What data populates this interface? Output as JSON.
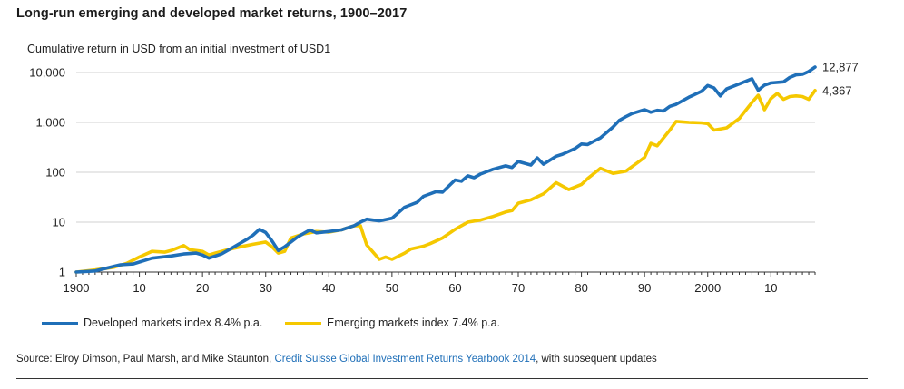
{
  "title": "Long-run emerging and developed market returns, 1900–2017",
  "subtitle": "Cumulative return in USD from an initial investment  of USD1",
  "legend": {
    "developed": "Developed markets index 8.4% p.a.",
    "emerging": "Emerging markets index 7.4% p.a."
  },
  "source": {
    "prefix": "Source: Elroy Dimson, Paul Marsh, and Mike Staunton, ",
    "link": "Credit Suisse Global Investment Returns Yearbook 2014",
    "suffix": ", with subsequent updates"
  },
  "colors": {
    "developed": "#1f6fb8",
    "emerging": "#f5c800",
    "axis": "#333333"
  },
  "chart_data": {
    "type": "line",
    "yscale": "log",
    "ylim": [
      1,
      12877
    ],
    "xlim": [
      1900,
      2017
    ],
    "yticks": [
      1,
      10,
      100,
      1000,
      10000
    ],
    "ytick_labels": [
      "1",
      "10",
      "100",
      "1,000",
      "10,000"
    ],
    "xticks": [
      1900,
      1910,
      1920,
      1930,
      1940,
      1950,
      1960,
      1970,
      1980,
      1990,
      2000,
      2010
    ],
    "xtick_labels": [
      "1900",
      "10",
      "20",
      "30",
      "40",
      "50",
      "60",
      "70",
      "80",
      "90",
      "2000",
      "10"
    ],
    "grid": "horizontal",
    "legend_position": "bottom-left",
    "series": [
      {
        "name": "Developed markets index 8.4% p.a.",
        "color": "#1f6fb8",
        "end_label": "12,877",
        "x": [
          1900,
          1903,
          1907,
          1909,
          1912,
          1915,
          1917,
          1919,
          1920,
          1921,
          1923,
          1925,
          1927,
          1928,
          1929,
          1930,
          1931,
          1932,
          1933,
          1935,
          1937,
          1938,
          1940,
          1942,
          1944,
          1945,
          1946,
          1948,
          1950,
          1952,
          1954,
          1955,
          1957,
          1958,
          1960,
          1961,
          1962,
          1963,
          1964,
          1966,
          1968,
          1969,
          1970,
          1972,
          1973,
          1974,
          1976,
          1977,
          1979,
          1980,
          1981,
          1982,
          1983,
          1985,
          1986,
          1987,
          1988,
          1990,
          1991,
          1992,
          1993,
          1994,
          1995,
          1997,
          1999,
          2000,
          2001,
          2002,
          2003,
          2005,
          2007,
          2008,
          2009,
          2010,
          2012,
          2013,
          2014,
          2015,
          2016,
          2017
        ],
        "y": [
          1,
          1.05,
          1.4,
          1.45,
          1.9,
          2.1,
          2.3,
          2.4,
          2.2,
          1.9,
          2.3,
          3.2,
          4.5,
          5.5,
          7.2,
          6.2,
          4.2,
          2.7,
          3.2,
          5,
          7,
          6.1,
          6.5,
          7,
          8.5,
          10,
          11.5,
          10.6,
          12,
          20,
          25,
          33,
          41,
          40,
          70,
          66,
          85,
          78,
          92,
          115,
          135,
          125,
          165,
          140,
          195,
          145,
          210,
          230,
          300,
          370,
          360,
          420,
          490,
          810,
          1100,
          1300,
          1500,
          1800,
          1600,
          1750,
          1700,
          2100,
          2300,
          3200,
          4200,
          5500,
          4900,
          3400,
          4700,
          5900,
          7500,
          4400,
          5600,
          6200,
          6500,
          8000,
          9000,
          9200,
          10500,
          12877
        ]
      },
      {
        "name": "Emerging markets index 7.4% p.a.",
        "color": "#f5c800",
        "end_label": "4,367",
        "x": [
          1900,
          1903,
          1906,
          1908,
          1910,
          1912,
          1914,
          1915,
          1917,
          1918,
          1920,
          1921,
          1922,
          1924,
          1926,
          1928,
          1930,
          1931,
          1932,
          1933,
          1934,
          1936,
          1938,
          1940,
          1942,
          1944,
          1945,
          1946,
          1947,
          1948,
          1949,
          1950,
          1952,
          1953,
          1955,
          1956,
          1957,
          1958,
          1960,
          1962,
          1964,
          1966,
          1968,
          1969,
          1970,
          1972,
          1974,
          1976,
          1978,
          1980,
          1981,
          1983,
          1985,
          1987,
          1989,
          1990,
          1991,
          1992,
          1994,
          1995,
          1997,
          1999,
          2000,
          2001,
          2003,
          2005,
          2007,
          2008,
          2009,
          2010,
          2011,
          2012,
          2013,
          2014,
          2015,
          2016,
          2017
        ],
        "y": [
          1,
          1.1,
          1.25,
          1.5,
          2,
          2.6,
          2.5,
          2.7,
          3.4,
          2.8,
          2.6,
          2.2,
          2.4,
          2.8,
          3.2,
          3.6,
          4,
          3.2,
          2.4,
          2.6,
          4.8,
          5.8,
          6.5,
          6.3,
          7,
          8.5,
          8.5,
          3.5,
          2.5,
          1.8,
          2,
          1.8,
          2.4,
          2.9,
          3.3,
          3.7,
          4.2,
          4.8,
          7.2,
          10,
          11,
          13,
          16,
          17,
          24,
          28,
          37,
          62,
          45,
          57,
          75,
          120,
          95,
          105,
          160,
          200,
          380,
          340,
          700,
          1050,
          1000,
          980,
          950,
          700,
          780,
          1200,
          2500,
          3500,
          1800,
          3000,
          3800,
          2900,
          3300,
          3400,
          3300,
          2900,
          4367
        ]
      }
    ]
  }
}
